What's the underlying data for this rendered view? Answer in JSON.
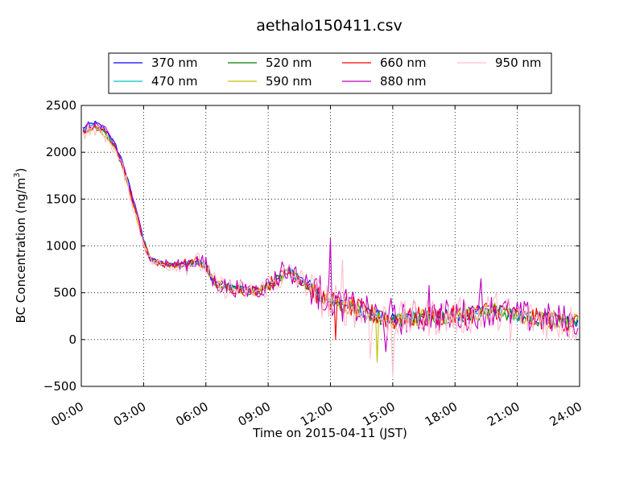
{
  "chart_data": {
    "type": "line",
    "title": "aethalo150411.csv",
    "xlabel": "Time on 2015-04-11 (JST)",
    "ylabel": "BC Concentration (ng/m3)",
    "ylabel_parts": {
      "prefix": "BC Concentration (ng/m",
      "sup": "3",
      "suffix": ")"
    },
    "xlim": [
      "00:00",
      "24:00"
    ],
    "ylim": [
      -500,
      2500
    ],
    "x_ticks": [
      "00:00",
      "03:00",
      "06:00",
      "09:00",
      "12:00",
      "15:00",
      "18:00",
      "21:00",
      "24:00"
    ],
    "y_ticks": [
      "−500",
      "0",
      "500",
      "1000",
      "1500",
      "2000",
      "2500"
    ],
    "grid": true,
    "legend_position": "top",
    "series": [
      {
        "name": "370 nm",
        "color": "#0000ff",
        "offset": 45,
        "jitter": 45
      },
      {
        "name": "470 nm",
        "color": "#00bfbf",
        "offset": 15,
        "jitter": 45
      },
      {
        "name": "520 nm",
        "color": "#008000",
        "offset": -5,
        "jitter": 50
      },
      {
        "name": "590 nm",
        "color": "#bfbf00",
        "offset": -10,
        "jitter": 60
      },
      {
        "name": "660 nm",
        "color": "#ff0000",
        "offset": 10,
        "jitter": 70
      },
      {
        "name": "880 nm",
        "color": "#bf00bf",
        "offset": 25,
        "jitter": 110
      },
      {
        "name": "950 nm",
        "color": "#ffc0cb",
        "offset": -25,
        "jitter": 130
      }
    ],
    "base_profile": {
      "x": [
        "00:00",
        "00:20",
        "00:40",
        "01:00",
        "01:20",
        "01:40",
        "02:00",
        "02:15",
        "02:30",
        "02:45",
        "03:00",
        "03:20",
        "03:40",
        "04:00",
        "04:30",
        "05:00",
        "05:30",
        "06:00",
        "06:20",
        "06:40",
        "07:00",
        "07:30",
        "08:00",
        "08:30",
        "09:00",
        "09:30",
        "10:00",
        "10:30",
        "11:00",
        "11:30",
        "12:00",
        "12:30",
        "13:00",
        "13:30",
        "14:00",
        "14:30",
        "15:00",
        "15:30",
        "16:00",
        "16:30",
        "17:00",
        "17:30",
        "18:00",
        "18:30",
        "19:00",
        "19:30",
        "20:00",
        "20:30",
        "21:00",
        "21:30",
        "22:00",
        "22:30",
        "23:00",
        "23:30",
        "24:00"
      ],
      "y": [
        2200,
        2250,
        2270,
        2230,
        2150,
        2020,
        1850,
        1650,
        1450,
        1250,
        1050,
        850,
        820,
        800,
        790,
        800,
        840,
        780,
        620,
        580,
        560,
        540,
        520,
        520,
        580,
        650,
        720,
        650,
        560,
        450,
        420,
        360,
        350,
        300,
        270,
        230,
        200,
        220,
        230,
        240,
        250,
        250,
        250,
        260,
        280,
        300,
        320,
        280,
        240,
        230,
        220,
        210,
        200,
        190,
        180
      ]
    },
    "spikes": [
      {
        "x": "09:40",
        "y": 830,
        "series": "880 nm"
      },
      {
        "x": "11:30",
        "y": 680,
        "series": "880 nm"
      },
      {
        "x": "12:00",
        "y": 1080,
        "series": "880 nm"
      },
      {
        "x": "12:15",
        "y": 0,
        "series": "660 nm"
      },
      {
        "x": "12:35",
        "y": 850,
        "series": "950 nm"
      },
      {
        "x": "13:55",
        "y": -200,
        "series": "950 nm"
      },
      {
        "x": "14:15",
        "y": -240,
        "series": "590 nm"
      },
      {
        "x": "14:40",
        "y": -130,
        "series": "880 nm"
      },
      {
        "x": "14:55",
        "y": 440,
        "series": "880 nm"
      },
      {
        "x": "15:00",
        "y": -400,
        "series": "950 nm"
      },
      {
        "x": "16:45",
        "y": 580,
        "series": "880 nm"
      },
      {
        "x": "19:15",
        "y": 650,
        "series": "880 nm"
      },
      {
        "x": "20:40",
        "y": -30,
        "series": "950 nm"
      }
    ]
  }
}
